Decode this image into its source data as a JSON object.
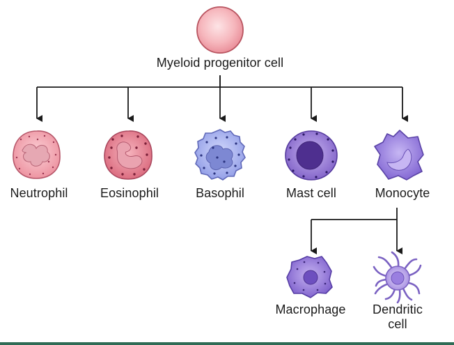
{
  "diagram": {
    "root": {
      "label": "Myeloid progenitor cell"
    },
    "children": [
      {
        "label": "Neutrophil"
      },
      {
        "label": "Eosinophil"
      },
      {
        "label": "Basophil"
      },
      {
        "label": "Mast cell"
      },
      {
        "label": "Monocyte"
      }
    ],
    "monocyte_children": [
      {
        "label": "Macrophage"
      },
      {
        "label": "Dendritic",
        "label_line2": "cell"
      }
    ]
  },
  "colors": {
    "lines": "#1a1a1a",
    "progenitor": "#f4a7ae",
    "neutrophil": "#f0a0ac",
    "eosinophil": "#e37f8f",
    "basophil": "#aab4ee",
    "mast_cell": "#9c7fd6",
    "monocyte": "#9b86e0",
    "macrophage": "#9a7ed8",
    "dendritic": "#b09ae6",
    "footer": "#2f6b55"
  }
}
